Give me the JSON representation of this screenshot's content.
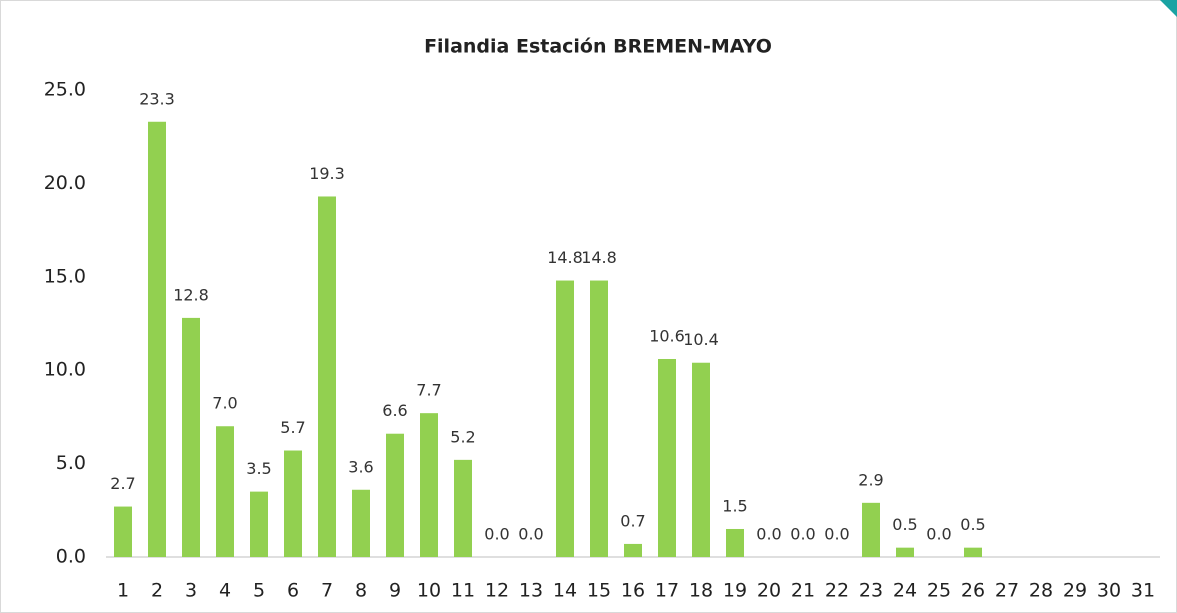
{
  "chart_data": {
    "type": "bar",
    "title": "Filandia Estación BREMEN-MAYO",
    "categories": [
      "1",
      "2",
      "3",
      "4",
      "5",
      "6",
      "7",
      "8",
      "9",
      "10",
      "11",
      "12",
      "13",
      "14",
      "15",
      "16",
      "17",
      "18",
      "19",
      "20",
      "21",
      "22",
      "23",
      "24",
      "25",
      "26",
      "27",
      "28",
      "29",
      "30",
      "31"
    ],
    "values": [
      2.7,
      23.3,
      12.8,
      7.0,
      3.5,
      5.7,
      19.3,
      3.6,
      6.6,
      7.7,
      5.2,
      0.0,
      0.0,
      14.8,
      14.8,
      0.7,
      10.6,
      10.4,
      1.5,
      0.0,
      0.0,
      0.0,
      2.9,
      0.5,
      0.0,
      0.5,
      null,
      null,
      null,
      null,
      null
    ],
    "value_labels": [
      "2.7",
      "23.3",
      "12.8",
      "7.0",
      "3.5",
      "5.7",
      "19.3",
      "3.6",
      "6.6",
      "7.7",
      "5.2",
      "0.0",
      "0.0",
      "14.8",
      "14.8",
      "0.7",
      "10.6",
      "10.4",
      "1.5",
      "0.0",
      "0.0",
      "0.0",
      "2.9",
      "0.5",
      "0.0",
      "0.5",
      null,
      null,
      null,
      null,
      null
    ],
    "color": "#92d050",
    "ylim": [
      0,
      25
    ],
    "yticks": [
      {
        "value": 0,
        "label": "0.0"
      },
      {
        "value": 5,
        "label": "5.0"
      },
      {
        "value": 10,
        "label": "10.0"
      },
      {
        "value": 15,
        "label": "15.0"
      },
      {
        "value": 20,
        "label": "20.0"
      },
      {
        "value": 25,
        "label": "25.0"
      }
    ],
    "grid": false
  }
}
